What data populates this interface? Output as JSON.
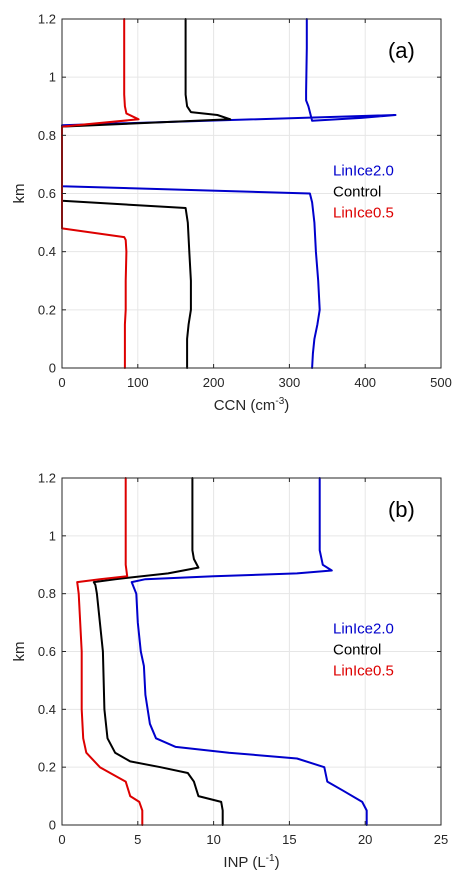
{
  "chart_data": [
    {
      "type": "line",
      "panel_label": "(a)",
      "xlabel_main": "CCN (cm",
      "xlabel_sup": "-3",
      "xlabel_end": ")",
      "ylabel": "km",
      "xlim": [
        0,
        500
      ],
      "ylim": [
        0,
        1.2
      ],
      "xticks": [
        "0",
        "100",
        "200",
        "300",
        "400",
        "500"
      ],
      "yticks": [
        "0",
        "0.2",
        "0.4",
        "0.6",
        "0.8",
        "1",
        "1.2"
      ],
      "grid": true,
      "legend_position": "right-middle",
      "series": [
        {
          "name": "LinIce2.0",
          "color": "#0000cc",
          "x": [
            330,
            331,
            333,
            337,
            340,
            338,
            335,
            333,
            330,
            327,
            0,
            0,
            0,
            440,
            395,
            330,
            325,
            322,
            322,
            323,
            323
          ],
          "y": [
            0,
            0.05,
            0.1,
            0.15,
            0.2,
            0.3,
            0.4,
            0.5,
            0.57,
            0.6,
            0.625,
            0.7,
            0.835,
            0.87,
            0.86,
            0.85,
            0.9,
            0.92,
            0.95,
            1.1,
            1.2
          ]
        },
        {
          "name": "Control",
          "color": "#000000",
          "x": [
            165,
            165,
            165,
            167,
            170,
            170,
            168,
            166,
            163,
            0,
            0,
            0,
            222,
            205,
            170,
            165,
            163,
            163,
            163
          ],
          "y": [
            0,
            0.05,
            0.1,
            0.15,
            0.2,
            0.3,
            0.4,
            0.5,
            0.55,
            0.575,
            0.7,
            0.83,
            0.855,
            0.87,
            0.88,
            0.9,
            0.94,
            1.1,
            1.2
          ]
        },
        {
          "name": "LinIce0.5",
          "color": "#dd0000",
          "x": [
            83,
            83,
            83,
            84,
            84,
            85,
            84,
            82,
            0,
            0,
            0,
            0,
            101,
            85,
            83,
            82,
            82,
            82
          ],
          "y": [
            0,
            0.05,
            0.15,
            0.2,
            0.3,
            0.4,
            0.44,
            0.45,
            0.48,
            0.6,
            0.7,
            0.83,
            0.855,
            0.875,
            0.9,
            0.94,
            1.1,
            1.2
          ]
        }
      ]
    },
    {
      "type": "line",
      "panel_label": "(b)",
      "xlabel_main": "INP (L",
      "xlabel_sup": "-1",
      "xlabel_end": ")",
      "ylabel": "km",
      "xlim": [
        0,
        25
      ],
      "ylim": [
        0,
        1.2
      ],
      "xticks": [
        "0",
        "5",
        "10",
        "15",
        "20",
        "25"
      ],
      "yticks": [
        "0",
        "0.2",
        "0.4",
        "0.6",
        "0.8",
        "1",
        "1.2"
      ],
      "grid": true,
      "legend_position": "right-middle",
      "series": [
        {
          "name": "LinIce2.0",
          "color": "#0000cc",
          "x": [
            20.1,
            20.1,
            19.8,
            18.5,
            17.5,
            17.3,
            15.5,
            11,
            7.5,
            6.2,
            5.8,
            5.5,
            5.4,
            5.2,
            5.0,
            4.9,
            4.6,
            5.5,
            10,
            15.5,
            17.8,
            17.2,
            17.0,
            17.0,
            17.0
          ],
          "y": [
            0,
            0.05,
            0.08,
            0.12,
            0.15,
            0.2,
            0.23,
            0.25,
            0.27,
            0.3,
            0.35,
            0.45,
            0.55,
            0.6,
            0.7,
            0.8,
            0.84,
            0.85,
            0.86,
            0.87,
            0.88,
            0.9,
            0.95,
            1.1,
            1.2
          ]
        },
        {
          "name": "Control",
          "color": "#000000",
          "x": [
            10.6,
            10.6,
            10.5,
            9.0,
            8.7,
            8.3,
            6.5,
            4.5,
            3.5,
            3.0,
            2.8,
            2.7,
            2.5,
            2.3,
            2.2,
            2.1,
            3.5,
            7.0,
            9.0,
            8.7,
            8.6,
            8.6,
            8.6
          ],
          "y": [
            0,
            0.05,
            0.08,
            0.1,
            0.15,
            0.18,
            0.2,
            0.22,
            0.25,
            0.3,
            0.4,
            0.6,
            0.7,
            0.8,
            0.83,
            0.84,
            0.85,
            0.87,
            0.89,
            0.92,
            0.95,
            1.1,
            1.2
          ]
        },
        {
          "name": "LinIce0.5",
          "color": "#dd0000",
          "x": [
            5.3,
            5.3,
            5.1,
            4.5,
            4.2,
            3.5,
            2.5,
            1.6,
            1.4,
            1.3,
            1.3,
            1.2,
            1.1,
            1.0,
            2.5,
            4.3,
            4.2,
            4.2,
            4.2
          ],
          "y": [
            0,
            0.05,
            0.08,
            0.1,
            0.15,
            0.17,
            0.2,
            0.25,
            0.3,
            0.4,
            0.6,
            0.7,
            0.8,
            0.84,
            0.85,
            0.86,
            0.9,
            1.1,
            1.2
          ]
        }
      ]
    }
  ]
}
